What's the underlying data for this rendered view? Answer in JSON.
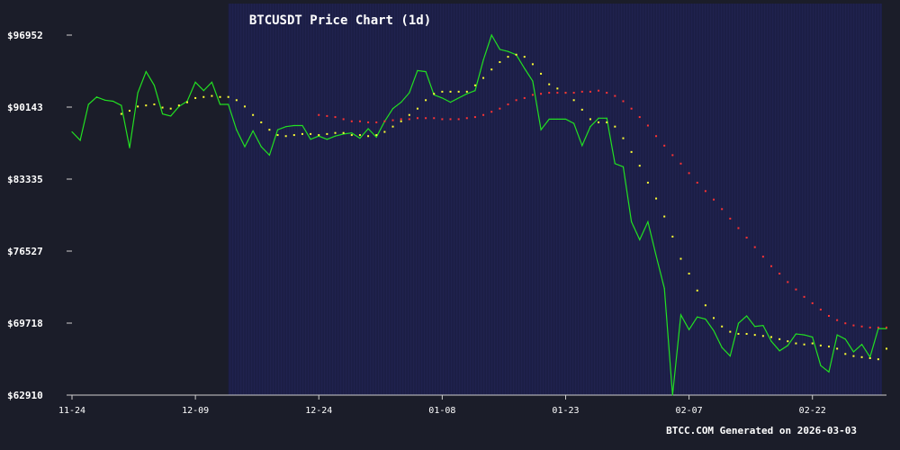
{
  "chart_data": {
    "type": "line",
    "title": "BTCUSDT Price Chart (1d)",
    "xlabel": "",
    "ylabel": "",
    "credit": "BTCC.COM Generated on 2026-03-03",
    "y_ticks": [
      "$96952",
      "$90143",
      "$83335",
      "$76527",
      "$69718",
      "$62910"
    ],
    "x_ticks": [
      "11-24",
      "12-09",
      "12-24",
      "01-08",
      "01-23",
      "02-07",
      "02-22"
    ],
    "x_range": [
      "2025-11-24",
      "2026-03-03"
    ],
    "ylim": [
      62910,
      96952
    ],
    "grid": false,
    "legend": "none",
    "colors": {
      "background": "#1b1d29",
      "band": "#1c1f4a",
      "band_stripe": "#2a2f66",
      "price": "#22e022",
      "ma_short": "#ffff33",
      "ma_long": "#ff3333",
      "axis": "#d0d0d0",
      "text": "#ffffff"
    },
    "band_range": [
      "2025-12-13",
      "2026-03-03"
    ],
    "series": [
      {
        "style": "line",
        "x": [
          "2025-11-24",
          "2025-11-25",
          "2025-11-26",
          "2025-11-27",
          "2025-11-28",
          "2025-11-29",
          "2025-11-30",
          "2025-12-01",
          "2025-12-02",
          "2025-12-03",
          "2025-12-04",
          "2025-12-05",
          "2025-12-06",
          "2025-12-07",
          "2025-12-08",
          "2025-12-09",
          "2025-12-10",
          "2025-12-11",
          "2025-12-12",
          "2025-12-13",
          "2025-12-14",
          "2025-12-15",
          "2025-12-16",
          "2025-12-17",
          "2025-12-18",
          "2025-12-19",
          "2025-12-20",
          "2025-12-21",
          "2025-12-22",
          "2025-12-23",
          "2025-12-24",
          "2025-12-25",
          "2025-12-26",
          "2025-12-27",
          "2025-12-28",
          "2025-12-29",
          "2025-12-30",
          "2025-12-31",
          "2026-01-01",
          "2026-01-02",
          "2026-01-03",
          "2026-01-04",
          "2026-01-05",
          "2026-01-06",
          "2026-01-07",
          "2026-01-08",
          "2026-01-09",
          "2026-01-10",
          "2026-01-11",
          "2026-01-12",
          "2026-01-13",
          "2026-01-14",
          "2026-01-15",
          "2026-01-16",
          "2026-01-17",
          "2026-01-18",
          "2026-01-19",
          "2026-01-20",
          "2026-01-21",
          "2026-01-22",
          "2026-01-23",
          "2026-01-24",
          "2026-01-25",
          "2026-01-26",
          "2026-01-27",
          "2026-01-28",
          "2026-01-29",
          "2026-01-30",
          "2026-01-31",
          "2026-02-01",
          "2026-02-02",
          "2026-02-03",
          "2026-02-04",
          "2026-02-05",
          "2026-02-06",
          "2026-02-07",
          "2026-02-08",
          "2026-02-09",
          "2026-02-10",
          "2026-02-11",
          "2026-02-12",
          "2026-02-13",
          "2026-02-14",
          "2026-02-15",
          "2026-02-16",
          "2026-02-17",
          "2026-02-18",
          "2026-02-19",
          "2026-02-20",
          "2026-02-21",
          "2026-02-22",
          "2026-02-23",
          "2026-02-24",
          "2026-02-25",
          "2026-02-26",
          "2026-02-27",
          "2026-02-28",
          "2026-03-01",
          "2026-03-02",
          "2026-03-03"
        ],
        "values": [
          87800,
          87000,
          90400,
          91100,
          90800,
          90700,
          90300,
          86300,
          91500,
          93500,
          92200,
          89500,
          89300,
          90200,
          90700,
          92500,
          91700,
          92500,
          90400,
          90400,
          88000,
          86400,
          87900,
          86400,
          85600,
          88000,
          88300,
          88400,
          88400,
          87100,
          87400,
          87100,
          87400,
          87600,
          87700,
          87200,
          88100,
          87300,
          88800,
          90000,
          90600,
          91500,
          93600,
          93500,
          91300,
          91000,
          90600,
          91000,
          91400,
          91700,
          94600,
          96952,
          95600,
          95400,
          95100,
          93800,
          92600,
          88000,
          89000,
          89000,
          89000,
          88600,
          86500,
          88300,
          89100,
          89100,
          84800,
          84500,
          79300,
          77600,
          79300,
          76100,
          73000,
          62910,
          70500,
          69100,
          70300,
          70100,
          69000,
          67400,
          66600,
          69700,
          70400,
          69400,
          69500,
          68000,
          67100,
          67600,
          68700,
          68600,
          68400,
          65700,
          65100,
          68600,
          68200,
          67000,
          67700,
          66500,
          69200,
          69200
        ]
      },
      {
        "style": "dots",
        "x": [
          "2025-11-30",
          "2025-12-01",
          "2025-12-02",
          "2025-12-03",
          "2025-12-04",
          "2025-12-05",
          "2025-12-06",
          "2025-12-07",
          "2025-12-08",
          "2025-12-09",
          "2025-12-10",
          "2025-12-11",
          "2025-12-12",
          "2025-12-13",
          "2025-12-14",
          "2025-12-15",
          "2025-12-16",
          "2025-12-17",
          "2025-12-18",
          "2025-12-19",
          "2025-12-20",
          "2025-12-21",
          "2025-12-22",
          "2025-12-23",
          "2025-12-24",
          "2025-12-25",
          "2025-12-26",
          "2025-12-27",
          "2025-12-28",
          "2025-12-29",
          "2025-12-30",
          "2025-12-31",
          "2026-01-01",
          "2026-01-02",
          "2026-01-03",
          "2026-01-04",
          "2026-01-05",
          "2026-01-06",
          "2026-01-07",
          "2026-01-08",
          "2026-01-09",
          "2026-01-10",
          "2026-01-11",
          "2026-01-12",
          "2026-01-13",
          "2026-01-14",
          "2026-01-15",
          "2026-01-16",
          "2026-01-17",
          "2026-01-18",
          "2026-01-19",
          "2026-01-20",
          "2026-01-21",
          "2026-01-22",
          "2026-01-23",
          "2026-01-24",
          "2026-01-25",
          "2026-01-26",
          "2026-01-27",
          "2026-01-28",
          "2026-01-29",
          "2026-01-30",
          "2026-01-31",
          "2026-02-01",
          "2026-02-02",
          "2026-02-03",
          "2026-02-04",
          "2026-02-05",
          "2026-02-06",
          "2026-02-07",
          "2026-02-08",
          "2026-02-09",
          "2026-02-10",
          "2026-02-11",
          "2026-02-12",
          "2026-02-13",
          "2026-02-14",
          "2026-02-15",
          "2026-02-16",
          "2026-02-17",
          "2026-02-18",
          "2026-02-19",
          "2026-02-20",
          "2026-02-21",
          "2026-02-22",
          "2026-02-23",
          "2026-02-24",
          "2026-02-25",
          "2026-02-26",
          "2026-02-27",
          "2026-02-28",
          "2026-03-01",
          "2026-03-02",
          "2026-03-03"
        ],
        "values": [
          89500,
          89800,
          90200,
          90300,
          90400,
          90100,
          90000,
          90300,
          90600,
          91000,
          91100,
          91200,
          91100,
          91100,
          90800,
          90200,
          89400,
          88700,
          88000,
          87500,
          87400,
          87500,
          87600,
          87600,
          87500,
          87600,
          87700,
          87700,
          87500,
          87500,
          87400,
          87500,
          87800,
          88300,
          88800,
          89400,
          90000,
          90800,
          91400,
          91600,
          91600,
          91600,
          91600,
          92200,
          92900,
          93700,
          94400,
          94900,
          95100,
          94900,
          94200,
          93300,
          92300,
          91900,
          91500,
          90800,
          89900,
          89000,
          88700,
          88700,
          88300,
          87200,
          85900,
          84600,
          83000,
          81500,
          79800,
          77900,
          75800,
          74400,
          72800,
          71400,
          70200,
          69400,
          68900,
          68700,
          68700,
          68600,
          68500,
          68400,
          68200,
          68000,
          67800,
          67700,
          67800,
          67600,
          67500,
          67300,
          66800,
          66600,
          66500,
          66400,
          66300,
          67300
        ]
      },
      {
        "style": "dots",
        "x": [
          "2025-12-24",
          "2025-12-25",
          "2025-12-26",
          "2025-12-27",
          "2025-12-28",
          "2025-12-29",
          "2025-12-30",
          "2025-12-31",
          "2026-01-01",
          "2026-01-02",
          "2026-01-03",
          "2026-01-04",
          "2026-01-05",
          "2026-01-06",
          "2026-01-07",
          "2026-01-08",
          "2026-01-09",
          "2026-01-10",
          "2026-01-11",
          "2026-01-12",
          "2026-01-13",
          "2026-01-14",
          "2026-01-15",
          "2026-01-16",
          "2026-01-17",
          "2026-01-18",
          "2026-01-19",
          "2026-01-20",
          "2026-01-21",
          "2026-01-22",
          "2026-01-23",
          "2026-01-24",
          "2026-01-25",
          "2026-01-26",
          "2026-01-27",
          "2026-01-28",
          "2026-01-29",
          "2026-01-30",
          "2026-01-31",
          "2026-02-01",
          "2026-02-02",
          "2026-02-03",
          "2026-02-04",
          "2026-02-05",
          "2026-02-06",
          "2026-02-07",
          "2026-02-08",
          "2026-02-09",
          "2026-02-10",
          "2026-02-11",
          "2026-02-12",
          "2026-02-13",
          "2026-02-14",
          "2026-02-15",
          "2026-02-16",
          "2026-02-17",
          "2026-02-18",
          "2026-02-19",
          "2026-02-20",
          "2026-02-21",
          "2026-02-22",
          "2026-02-23",
          "2026-02-24",
          "2026-02-25",
          "2026-02-26",
          "2026-02-27",
          "2026-02-28",
          "2026-03-01",
          "2026-03-02",
          "2026-03-03"
        ],
        "values": [
          89400,
          89300,
          89200,
          89000,
          88800,
          88800,
          88700,
          88700,
          88800,
          88900,
          89000,
          89000,
          89100,
          89100,
          89100,
          89000,
          89000,
          89000,
          89100,
          89200,
          89400,
          89700,
          90000,
          90400,
          90800,
          91000,
          91300,
          91400,
          91500,
          91500,
          91500,
          91500,
          91600,
          91600,
          91700,
          91500,
          91200,
          90700,
          90000,
          89200,
          88400,
          87400,
          86500,
          85600,
          84800,
          83900,
          83000,
          82200,
          81400,
          80500,
          79600,
          78700,
          77800,
          76900,
          76000,
          75100,
          74400,
          73600,
          72900,
          72200,
          71600,
          71000,
          70400,
          70000,
          69700,
          69500,
          69400,
          69300,
          69300,
          69300
        ]
      }
    ]
  }
}
